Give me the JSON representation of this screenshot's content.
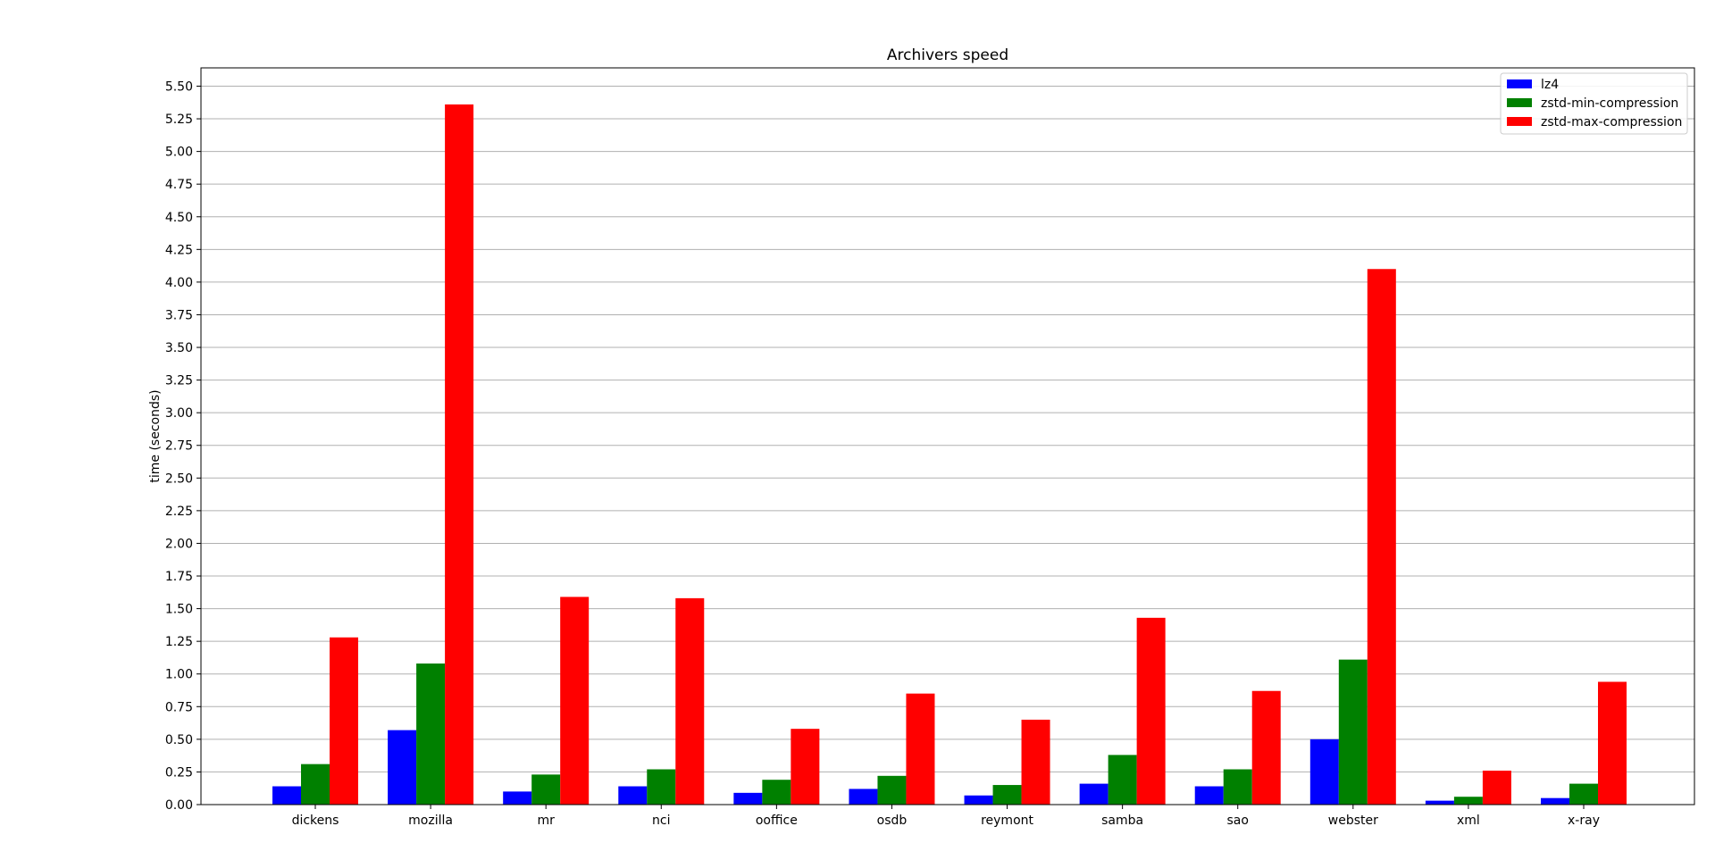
{
  "chart_data": {
    "type": "bar",
    "title": "Archivers speed",
    "xlabel": "",
    "ylabel": "time (seconds)",
    "ylim": [
      0,
      5.64
    ],
    "yticks": [
      0.0,
      0.25,
      0.5,
      0.75,
      1.0,
      1.25,
      1.5,
      1.75,
      2.0,
      2.25,
      2.5,
      2.75,
      3.0,
      3.25,
      3.5,
      3.75,
      4.0,
      4.25,
      4.5,
      4.75,
      5.0,
      5.25,
      5.5
    ],
    "ytick_labels": [
      "0.00",
      "0.25",
      "0.50",
      "0.75",
      "1.00",
      "1.25",
      "1.50",
      "1.75",
      "2.00",
      "2.25",
      "2.50",
      "2.75",
      "3.00",
      "3.25",
      "3.50",
      "3.75",
      "4.00",
      "4.25",
      "4.50",
      "4.75",
      "5.00",
      "5.25",
      "5.50"
    ],
    "grid": "horizontal",
    "legend_position": "top-right",
    "categories": [
      "dickens",
      "mozilla",
      "mr",
      "nci",
      "ooffice",
      "osdb",
      "reymont",
      "samba",
      "sao",
      "webster",
      "xml",
      "x-ray"
    ],
    "series": [
      {
        "name": "lz4",
        "color": "#0000ff",
        "values": [
          0.14,
          0.57,
          0.1,
          0.14,
          0.09,
          0.12,
          0.07,
          0.16,
          0.14,
          0.5,
          0.03,
          0.05
        ]
      },
      {
        "name": "zstd-min-compression",
        "color": "#008000",
        "values": [
          0.31,
          1.08,
          0.23,
          0.27,
          0.19,
          0.22,
          0.15,
          0.38,
          0.27,
          1.11,
          0.06,
          0.16
        ]
      },
      {
        "name": "zstd-max-compression",
        "color": "#ff0000",
        "values": [
          1.28,
          5.36,
          1.59,
          1.58,
          0.58,
          0.85,
          0.65,
          1.43,
          0.87,
          4.1,
          0.26,
          0.94
        ]
      }
    ]
  }
}
